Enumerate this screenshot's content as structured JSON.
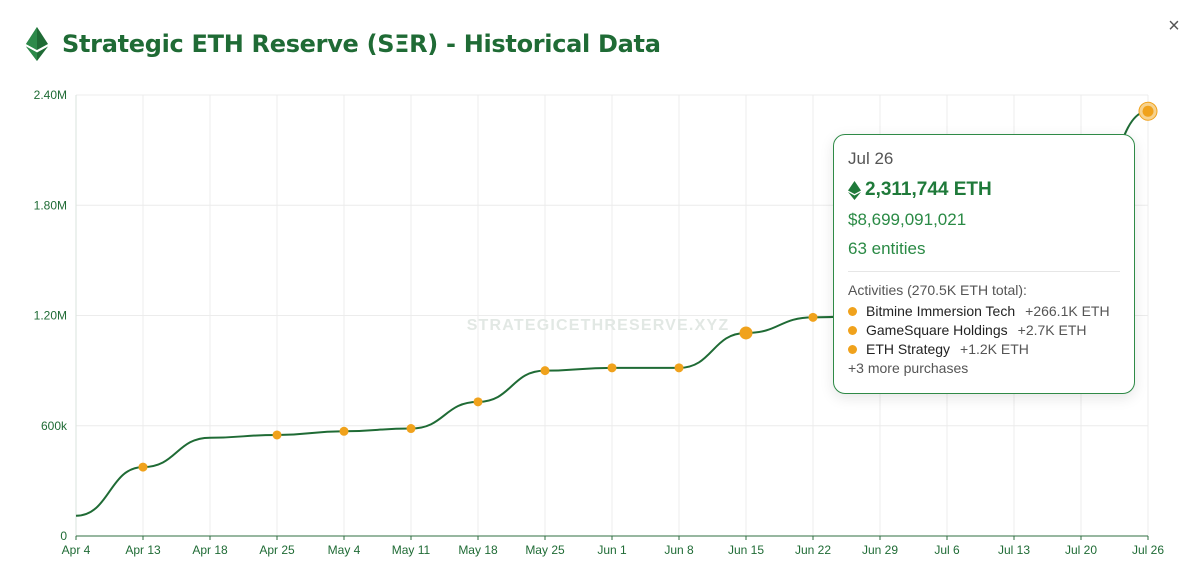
{
  "header": {
    "title": "Strategic ETH Reserve (SΞR) - Historical Data",
    "close_label": "×",
    "logo_icon": "ethereum-diamond-icon",
    "close_icon": "close-x-icon"
  },
  "watermark": "STRATEGICETHRESERVE.XYZ",
  "colors": {
    "line": "#1f6b35",
    "marker": "#f0a21c",
    "grid": "#ececec",
    "axis_text": "#1f6b35",
    "tooltip_border": "#2f8a47"
  },
  "tooltip": {
    "date": "Jul 26",
    "eth_amount": "2,311,744 ETH",
    "usd_value": "$8,699,091,021",
    "entities": "63 entities",
    "activities_title": "Activities (270.5K ETH total):",
    "activities": [
      {
        "name": "Bitmine Immersion Tech",
        "amount": "+266.1K ETH"
      },
      {
        "name": "GameSquare Holdings",
        "amount": "+2.7K ETH"
      },
      {
        "name": "ETH Strategy",
        "amount": "+1.2K ETH"
      }
    ],
    "more": "+3 more purchases"
  },
  "chart_data": {
    "type": "line",
    "x_ticks": [
      "Apr 4",
      "Apr 13",
      "Apr 18",
      "Apr 25",
      "May 4",
      "May 11",
      "May 18",
      "May 25",
      "Jun 1",
      "Jun 8",
      "Jun 15",
      "Jun 22",
      "Jun 29",
      "Jul 6",
      "Jul 13",
      "Jul 20",
      "Jul 26"
    ],
    "y_ticks": [
      {
        "value": 0,
        "label": "0"
      },
      {
        "value": 600000,
        "label": "600k"
      },
      {
        "value": 1200000,
        "label": "1.20M"
      },
      {
        "value": 1800000,
        "label": "1.80M"
      },
      {
        "value": 2400000,
        "label": "2.40M"
      }
    ],
    "ylim": [
      0,
      2400000
    ],
    "grid": true,
    "series": [
      {
        "values": [
          {
            "x": "Apr 4",
            "y": 110000
          },
          {
            "x": "Apr 13",
            "y": 375000
          },
          {
            "x": "Apr 18",
            "y": 535000
          },
          {
            "x": "Apr 25",
            "y": 550000
          },
          {
            "x": "May 4",
            "y": 570000
          },
          {
            "x": "May 11",
            "y": 585000
          },
          {
            "x": "May 18",
            "y": 730000
          },
          {
            "x": "May 25",
            "y": 900000
          },
          {
            "x": "Jun 1",
            "y": 915000
          },
          {
            "x": "Jun 8",
            "y": 915000
          },
          {
            "x": "Jun 15",
            "y": 1105000
          },
          {
            "x": "Jun 22",
            "y": 1190000
          },
          {
            "x": "Jun 29",
            "y": 1200000
          },
          {
            "x": "Jul 6",
            "y": 1300000
          },
          {
            "x": "Jul 13",
            "y": 1550000
          },
          {
            "x": "Jul 20",
            "y": 1750000
          },
          {
            "x": "Jul 26",
            "y": 2311744
          }
        ]
      }
    ],
    "markers": [
      "Apr 13",
      "Apr 25",
      "May 4",
      "May 11",
      "May 18",
      "May 25",
      "Jun 1",
      "Jun 8",
      "Jun 15",
      "Jun 22",
      "Jul 26"
    ],
    "highlighted": "Jul 26"
  }
}
